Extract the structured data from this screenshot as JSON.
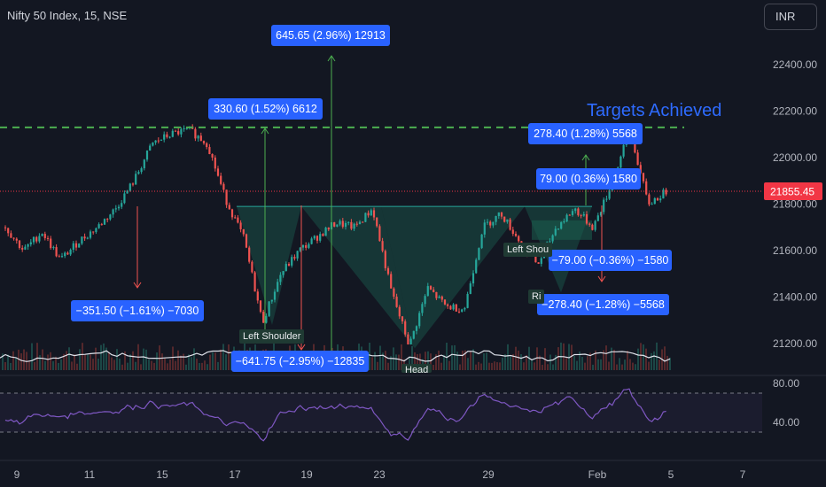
{
  "header": {
    "title": "Nifty 50 Index, 15, NSE",
    "currency": "INR"
  },
  "headline": "Targets Achieved",
  "colors": {
    "background": "#131722",
    "up_candle": "#26a69a",
    "down_candle": "#ef5350",
    "measure_pill": "#2962ff",
    "target_line": "#4caf50",
    "rsi_line": "#7e57c2",
    "price_badge": "#f23645"
  },
  "measurements": [
    {
      "text": "645.65 (2.96%) 12913"
    },
    {
      "text": "330.60 (1.52%) 6612"
    },
    {
      "text": "−351.50 (−1.61%) −7030"
    },
    {
      "text": "−641.75 (−2.95%) −12835"
    },
    {
      "text": "278.40 (1.28%) 5568"
    },
    {
      "text": "79.00 (0.36%) 1580"
    },
    {
      "text": "−79.00 (−0.36%) −1580"
    },
    {
      "text": "−278.40 (−1.28%) −5568"
    }
  ],
  "pattern_labels": [
    {
      "text": "Left Shoulder"
    },
    {
      "text": "Head"
    },
    {
      "text": "Left Shou"
    },
    {
      "text": "Ri"
    }
  ],
  "chart_data": {
    "type": "candlestick",
    "symbol": "Nifty 50 Index",
    "interval": "15",
    "exchange": "NSE",
    "last_price": 21855.45,
    "last_price_label": "21855.45",
    "target_level": 22130,
    "ylim": [
      21080,
      22520
    ],
    "y_ticks": [
      "22400.00",
      "22200.00",
      "22000.00",
      "21800.00",
      "21600.00",
      "21400.00",
      "21200.00"
    ],
    "x_tick_labels": [
      "9",
      "11",
      "15",
      "17",
      "19",
      "23",
      "29",
      "Feb",
      "5",
      "7"
    ],
    "price_path": [
      {
        "d": "Jan 9",
        "close": 21700
      },
      {
        "d": "Jan 9",
        "close": 21600
      },
      {
        "d": "Jan 10",
        "close": 21680
      },
      {
        "d": "Jan 10",
        "close": 21560
      },
      {
        "d": "Jan 11",
        "close": 21640
      },
      {
        "d": "Jan 11",
        "close": 21700
      },
      {
        "d": "Jan 12",
        "close": 21780
      },
      {
        "d": "Jan 12",
        "close": 21900
      },
      {
        "d": "Jan 15",
        "close": 22060
      },
      {
        "d": "Jan 15",
        "close": 22100
      },
      {
        "d": "Jan 16",
        "close": 22120
      },
      {
        "d": "Jan 16",
        "close": 22060
      },
      {
        "d": "Jan 17",
        "close": 21820
      },
      {
        "d": "Jan 17",
        "close": 21650
      },
      {
        "d": "Jan 18",
        "close": 21290
      },
      {
        "d": "Jan 18",
        "close": 21500
      },
      {
        "d": "Jan 19",
        "close": 21600
      },
      {
        "d": "Jan 19",
        "close": 21660
      },
      {
        "d": "Jan 20",
        "close": 21720
      },
      {
        "d": "Jan 20",
        "close": 21700
      },
      {
        "d": "Jan 23",
        "close": 21780
      },
      {
        "d": "Jan 23",
        "close": 21430
      },
      {
        "d": "Jan 24",
        "close": 21190
      },
      {
        "d": "Jan 24",
        "close": 21440
      },
      {
        "d": "Jan 25",
        "close": 21360
      },
      {
        "d": "Jan 25",
        "close": 21350
      },
      {
        "d": "Jan 29",
        "close": 21700
      },
      {
        "d": "Jan 29",
        "close": 21760
      },
      {
        "d": "Jan 30",
        "close": 21640
      },
      {
        "d": "Jan 30",
        "close": 21540
      },
      {
        "d": "Jan 31",
        "close": 21700
      },
      {
        "d": "Feb 1",
        "close": 21780
      },
      {
        "d": "Feb 1",
        "close": 21700
      },
      {
        "d": "Feb 2",
        "close": 21880
      },
      {
        "d": "Feb 2",
        "close": 22120
      },
      {
        "d": "Feb 5",
        "close": 21800
      },
      {
        "d": "Feb 5",
        "close": 21855
      }
    ],
    "rsi": {
      "levels": [
        "80.00",
        "40.00"
      ],
      "upper_band": 70,
      "lower_band": 30
    }
  }
}
